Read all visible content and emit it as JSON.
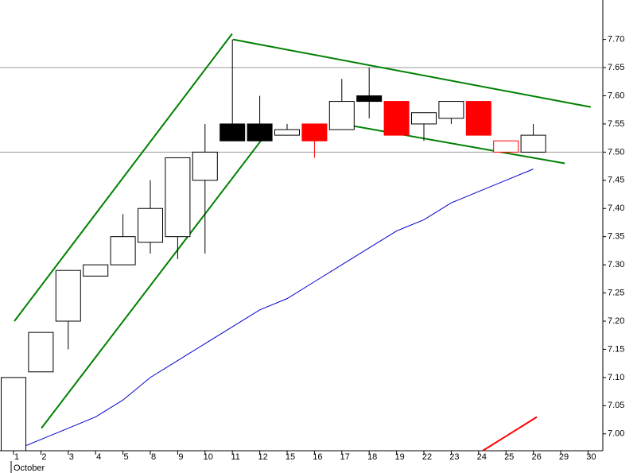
{
  "chart_data": {
    "type": "candlestick",
    "categories": [
      "1",
      "2",
      "3",
      "4",
      "5",
      "8",
      "9",
      "10",
      "11",
      "12",
      "15",
      "16",
      "17",
      "18",
      "19",
      "22",
      "23",
      "24",
      "25",
      "26",
      "29",
      "30"
    ],
    "month_label": "October",
    "series": [
      {
        "open": [
          6.97,
          7.11,
          7.2,
          7.28,
          7.3,
          7.34,
          7.35,
          7.45,
          7.55,
          7.55,
          7.53,
          7.55,
          7.54,
          7.6,
          7.59,
          7.55,
          7.56,
          7.59,
          7.5,
          7.5,
          null,
          null
        ],
        "high": [
          7.1,
          7.18,
          7.29,
          7.3,
          7.39,
          7.45,
          7.49,
          7.55,
          7.7,
          7.6,
          7.55,
          7.55,
          7.63,
          7.65,
          7.59,
          7.57,
          7.59,
          7.59,
          7.52,
          7.55,
          null,
          null
        ],
        "low": [
          6.97,
          7.11,
          7.15,
          7.28,
          7.3,
          7.32,
          7.31,
          7.32,
          7.52,
          7.52,
          7.53,
          7.49,
          7.54,
          7.56,
          7.53,
          7.52,
          7.55,
          7.53,
          7.5,
          7.5,
          null,
          null
        ],
        "close": [
          7.1,
          7.18,
          7.29,
          7.3,
          7.35,
          7.4,
          7.49,
          7.5,
          7.52,
          7.52,
          7.54,
          7.52,
          7.59,
          7.59,
          7.53,
          7.57,
          7.59,
          7.53,
          7.52,
          7.53,
          null,
          null
        ],
        "fills": [
          "#ffffff",
          "#ffffff",
          "#ffffff",
          "#ffffff",
          "#ffffff",
          "#ffffff",
          "#ffffff",
          "#ffffff",
          "#000000",
          "#000000",
          "#ffffff",
          "#ff0000",
          "#ffffff",
          "#000000",
          "#ff0000",
          "#ffffff",
          "#ffffff",
          "#ff0000",
          "#ffffff",
          "#ffffff",
          null,
          null
        ],
        "edges": [
          "#000000",
          "#000000",
          "#000000",
          "#000000",
          "#000000",
          "#000000",
          "#000000",
          "#000000",
          "#000000",
          "#000000",
          "#000000",
          "#ff0000",
          "#000000",
          "#000000",
          "#ff0000",
          "#000000",
          "#000000",
          "#ff0000",
          "#ff0000",
          "#000000",
          null,
          null
        ]
      }
    ],
    "moving_average": {
      "color": "#0000cc",
      "values": [
        6.97,
        6.99,
        7.01,
        7.03,
        7.06,
        7.1,
        7.13,
        7.16,
        7.19,
        7.22,
        7.24,
        7.27,
        7.3,
        7.33,
        7.36,
        7.38,
        7.41,
        7.43,
        7.45,
        7.47,
        null,
        null
      ]
    },
    "trendlines": [
      {
        "color": "#008000",
        "x": [
          0.03,
          7.99
        ],
        "y": [
          7.2,
          7.71
        ]
      },
      {
        "color": "#008000",
        "x": [
          1.02,
          9.04
        ],
        "y": [
          7.01,
          7.52
        ]
      },
      {
        "color": "#008000",
        "x": [
          8.02,
          21.1
        ],
        "y": [
          7.7,
          7.58
        ]
      },
      {
        "color": "#008000",
        "x": [
          12.0,
          20.15
        ],
        "y": [
          7.55,
          7.48
        ]
      },
      {
        "color": "#ff0000",
        "x": [
          17.15,
          19.13
        ],
        "y": [
          6.97,
          7.03
        ]
      }
    ],
    "hlines": [
      7.65,
      7.5
    ],
    "ylim": [
      6.97,
      7.77
    ],
    "yticks": [
      {
        "value": 7.0,
        "label": "7.00"
      },
      {
        "value": 7.05,
        "label": "7.05"
      },
      {
        "value": 7.1,
        "label": "7.10"
      },
      {
        "value": 7.15,
        "label": "7.15"
      },
      {
        "value": 7.2,
        "label": "7.20"
      },
      {
        "value": 7.25,
        "label": "7.25"
      },
      {
        "value": 7.3,
        "label": "7.30"
      },
      {
        "value": 7.35,
        "label": "7.35"
      },
      {
        "value": 7.4,
        "label": "7.40"
      },
      {
        "value": 7.45,
        "label": "7.45"
      },
      {
        "value": 7.5,
        "label": "7.50"
      },
      {
        "value": 7.55,
        "label": "7.55"
      },
      {
        "value": 7.6,
        "label": "7.60"
      },
      {
        "value": 7.65,
        "label": "7.65"
      },
      {
        "value": 7.7,
        "label": "7.70"
      }
    ]
  }
}
